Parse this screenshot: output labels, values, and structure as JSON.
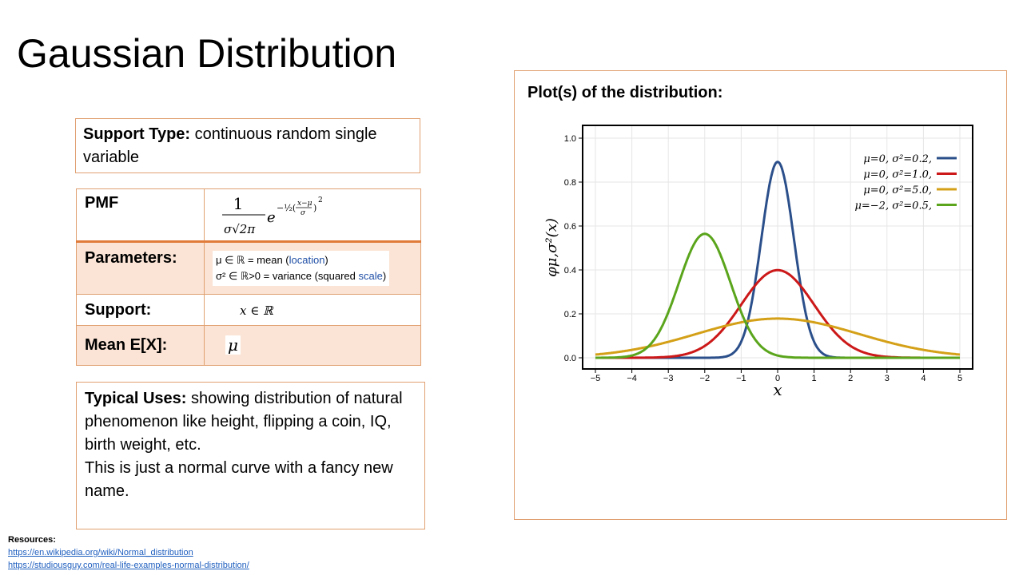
{
  "slide": {
    "title": "Gaussian Distribution",
    "support_type_label": "Support Type:",
    "support_type_value": " continuous random single variable",
    "table": {
      "pmf_label": "PMF",
      "parameters_label": "Parameters:",
      "param_line1": "μ ∈ ℝ = mean (",
      "param_line1_link": "location",
      "param_line1_end": ")",
      "param_line2": "σ² ∈ ℝ>0 = variance (squared ",
      "param_line2_link": "scale",
      "param_line2_end": ")",
      "support_label": "Support:",
      "support_value": "x ∈ ℝ",
      "mean_label": "Mean E[X]:",
      "mean_value": "μ"
    },
    "uses_label": "Typical Uses:",
    "uses_text": " showing distribution of natural phenomenon like height, flipping a coin, IQ, birth weight, etc.",
    "uses_text2": "This is just a normal curve with a fancy new name.",
    "plot_title": "Plot(s) of the distribution:",
    "resources_label": "Resources:",
    "resource_links": [
      "https://en.wikipedia.org/wiki/Normal_distribution",
      "https://studiousguy.com/real-life-examples-normal-distribution/"
    ]
  },
  "colors": {
    "border": "#e0a070",
    "shade": "#fbe4d5",
    "link": "#1f5fbf"
  },
  "chart_data": {
    "type": "line",
    "xlabel": "x",
    "ylabel": "φμ,σ²(x)",
    "xlim": [
      -5,
      5
    ],
    "ylim": [
      0,
      1.0
    ],
    "xticks": [
      -5,
      -4,
      -3,
      -2,
      -1,
      0,
      1,
      2,
      3,
      4,
      5
    ],
    "yticks": [
      0.0,
      0.2,
      0.4,
      0.6,
      0.8,
      1.0
    ],
    "grid": true,
    "legend_position": "top-right",
    "series": [
      {
        "name": "μ=0,   σ²=0.2,",
        "mu": 0,
        "var": 0.2,
        "color": "#2b4f8a"
      },
      {
        "name": "μ=0,   σ²=1.0,",
        "mu": 0,
        "var": 1.0,
        "color": "#cc1818"
      },
      {
        "name": "μ=0,   σ²=5.0,",
        "mu": 0,
        "var": 5.0,
        "color": "#d4a017"
      },
      {
        "name": "μ=−2,  σ²=0.5,",
        "mu": -2,
        "var": 0.5,
        "color": "#5aa51c"
      }
    ]
  }
}
